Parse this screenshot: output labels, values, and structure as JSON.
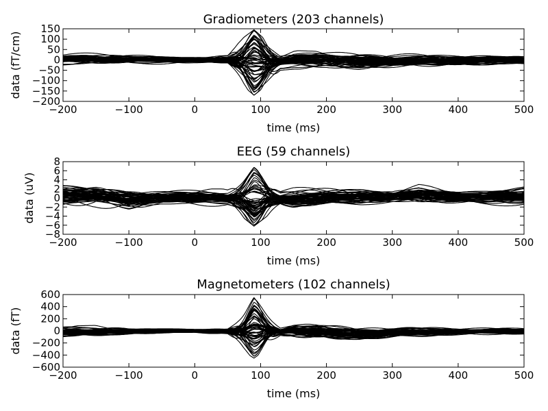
{
  "chart_data": [
    {
      "type": "line",
      "title": "Gradiometers (203 channels)",
      "xlabel": "time (ms)",
      "ylabel": "data (fT/cm)",
      "xlim": [
        -200,
        500
      ],
      "ylim": [
        -200,
        150
      ],
      "xticks": [
        -200,
        -100,
        0,
        100,
        200,
        300,
        400,
        500
      ],
      "yticks": [
        -200,
        -150,
        -100,
        -50,
        0,
        50,
        100,
        150
      ],
      "xtick_labels": [
        "−200",
        "−100",
        "0",
        "100",
        "200",
        "300",
        "400",
        "500"
      ],
      "ytick_labels": [
        "−200",
        "−150",
        "−100",
        "−50",
        "0",
        "50",
        "100",
        "150"
      ],
      "channel_count": 203,
      "line_color": "#000000",
      "grid": false,
      "envelope": {
        "description_points_ms": [
          -200,
          -150,
          -100,
          -50,
          0,
          50,
          75,
          90,
          110,
          130,
          150,
          200,
          250,
          300,
          400,
          500
        ],
        "upper": [
          35,
          35,
          30,
          25,
          20,
          25,
          110,
          145,
          90,
          30,
          45,
          40,
          45,
          40,
          30,
          25
        ],
        "lower": [
          -30,
          -30,
          -25,
          -25,
          -20,
          -25,
          -130,
          -170,
          -120,
          -50,
          -45,
          -40,
          -60,
          -50,
          -35,
          -25
        ]
      }
    },
    {
      "type": "line",
      "title": "EEG (59 channels)",
      "xlabel": "time (ms)",
      "ylabel": "data (uV)",
      "xlim": [
        -200,
        500
      ],
      "ylim": [
        -8,
        8
      ],
      "xticks": [
        -200,
        -100,
        0,
        100,
        200,
        300,
        400,
        500
      ],
      "yticks": [
        -8,
        -6,
        -4,
        -2,
        0,
        2,
        4,
        6,
        8
      ],
      "xtick_labels": [
        "−200",
        "−100",
        "0",
        "100",
        "200",
        "300",
        "400",
        "500"
      ],
      "ytick_labels": [
        "−8",
        "−6",
        "−4",
        "−2",
        "0",
        "2",
        "4",
        "6",
        "8"
      ],
      "channel_count": 59,
      "line_color": "#000000",
      "grid": false,
      "envelope": {
        "description_points_ms": [
          -200,
          -150,
          -100,
          -50,
          0,
          50,
          75,
          90,
          110,
          130,
          150,
          200,
          250,
          300,
          340,
          400,
          500
        ],
        "upper": [
          3.5,
          3.5,
          2.5,
          2,
          2,
          2,
          5,
          7,
          5,
          2,
          2.5,
          2.5,
          2.5,
          2,
          3.5,
          2,
          3
        ],
        "lower": [
          -2.5,
          -2.5,
          -3.5,
          -2,
          -2,
          -2,
          -4.5,
          -6.2,
          -4,
          -2,
          -2.5,
          -2,
          -2,
          -1.5,
          -2,
          -1.5,
          -2
        ]
      }
    },
    {
      "type": "line",
      "title": "Magnetometers (102 channels)",
      "xlabel": "time (ms)",
      "ylabel": "data (fT)",
      "xlim": [
        -200,
        500
      ],
      "ylim": [
        -600,
        600
      ],
      "xticks": [
        -200,
        -100,
        0,
        100,
        200,
        300,
        400,
        500
      ],
      "yticks": [
        -600,
        -400,
        -200,
        0,
        200,
        400,
        600
      ],
      "xtick_labels": [
        "−200",
        "−100",
        "0",
        "100",
        "200",
        "300",
        "400",
        "500"
      ],
      "ytick_labels": [
        "−600",
        "−400",
        "−200",
        "0",
        "200",
        "400",
        "600"
      ],
      "channel_count": 102,
      "line_color": "#000000",
      "grid": false,
      "envelope": {
        "description_points_ms": [
          -200,
          -150,
          -100,
          -50,
          0,
          50,
          75,
          90,
          110,
          130,
          150,
          180,
          250,
          300,
          400,
          500
        ],
        "upper": [
          80,
          90,
          70,
          50,
          40,
          60,
          350,
          550,
          320,
          80,
          150,
          130,
          90,
          80,
          60,
          50
        ],
        "lower": [
          -120,
          -120,
          -90,
          -60,
          -40,
          -70,
          -350,
          -450,
          -300,
          -100,
          -150,
          -170,
          -180,
          -130,
          -80,
          -60
        ]
      }
    }
  ]
}
